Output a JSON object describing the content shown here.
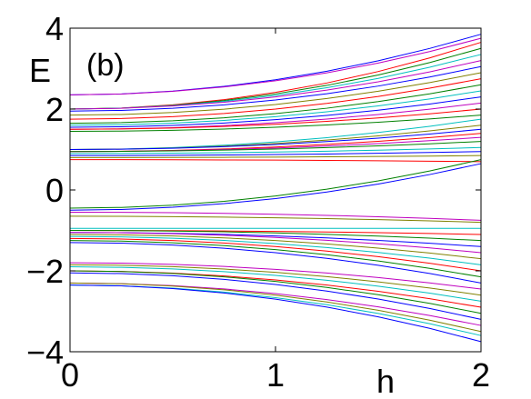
{
  "chart_data": {
    "type": "line",
    "panel_label": "(b)",
    "title": "",
    "xlabel": "h",
    "ylabel": "E",
    "xlim": [
      0,
      2
    ],
    "ylim": [
      -4,
      4
    ],
    "xticks": [
      {
        "value": 0,
        "label": "0"
      },
      {
        "value": 1,
        "label": "1"
      },
      {
        "value": 2,
        "label": "2"
      }
    ],
    "yticks": [
      {
        "value": -4,
        "label": "−4"
      },
      {
        "value": -2,
        "label": "−2"
      },
      {
        "value": 0,
        "label": "0"
      },
      {
        "value": 2,
        "label": "2"
      },
      {
        "value": 4,
        "label": "4"
      }
    ],
    "grid": false,
    "legend": "none",
    "x_samples": [
      0,
      0.25,
      0.5,
      0.75,
      1,
      1.25,
      1.5,
      1.75,
      2
    ],
    "series": [
      {
        "start": 2.35,
        "end": 3.85,
        "color": "#0000ff"
      },
      {
        "start": 2.35,
        "end": 3.75,
        "color": "#bf00bf"
      },
      {
        "start": 2.0,
        "end": 3.65,
        "color": "#ff0000"
      },
      {
        "start": 2.0,
        "end": 3.5,
        "color": "#008000"
      },
      {
        "start": 2.0,
        "end": 3.35,
        "color": "#00bfbf"
      },
      {
        "start": 2.0,
        "end": 3.2,
        "color": "#bf00bf"
      },
      {
        "start": 1.95,
        "end": 3.05,
        "color": "#0000ff"
      },
      {
        "start": 1.85,
        "end": 2.9,
        "color": "#808000"
      },
      {
        "start": 1.75,
        "end": 2.75,
        "color": "#ff0000"
      },
      {
        "start": 1.65,
        "end": 2.6,
        "color": "#008000"
      },
      {
        "start": 1.6,
        "end": 2.45,
        "color": "#00bfbf"
      },
      {
        "start": 1.55,
        "end": 2.3,
        "color": "#0000ff"
      },
      {
        "start": 1.5,
        "end": 2.15,
        "color": "#bf00bf"
      },
      {
        "start": 1.5,
        "end": 2.0,
        "color": "#ff0000"
      },
      {
        "start": 1.45,
        "end": 1.85,
        "color": "#008000"
      },
      {
        "start": 1.0,
        "end": 1.75,
        "color": "#00bfbf"
      },
      {
        "start": 1.0,
        "end": 1.6,
        "color": "#808000"
      },
      {
        "start": 1.0,
        "end": 1.5,
        "color": "#0000ff"
      },
      {
        "start": 0.95,
        "end": 1.4,
        "color": "#ff0000"
      },
      {
        "start": 0.95,
        "end": 1.3,
        "color": "#bf00bf"
      },
      {
        "start": 0.95,
        "end": 1.2,
        "color": "#008000"
      },
      {
        "start": 0.9,
        "end": 1.05,
        "color": "#00bfbf"
      },
      {
        "start": 0.85,
        "end": 0.95,
        "color": "#0000ff"
      },
      {
        "start": 0.8,
        "end": 0.85,
        "color": "#808000"
      },
      {
        "start": 0.75,
        "end": 0.7,
        "color": "#ff0000"
      },
      {
        "start": -0.45,
        "end": 0.75,
        "color": "#008000"
      },
      {
        "start": -0.5,
        "end": 0.65,
        "color": "#0000ff"
      },
      {
        "start": -0.55,
        "end": -0.75,
        "color": "#bf00bf"
      },
      {
        "start": -0.65,
        "end": -0.8,
        "color": "#808000"
      },
      {
        "start": -0.95,
        "end": -0.95,
        "color": "#00bfbf"
      },
      {
        "start": -1.0,
        "end": -1.1,
        "color": "#ff0000"
      },
      {
        "start": -1.0,
        "end": -1.25,
        "color": "#008000"
      },
      {
        "start": -1.05,
        "end": -1.4,
        "color": "#0000ff"
      },
      {
        "start": -1.05,
        "end": -1.55,
        "color": "#bf00bf"
      },
      {
        "start": -1.1,
        "end": -1.7,
        "color": "#808000"
      },
      {
        "start": -1.15,
        "end": -1.85,
        "color": "#00bfbf"
      },
      {
        "start": -1.2,
        "end": -2.0,
        "color": "#ff0000"
      },
      {
        "start": -1.25,
        "end": -2.15,
        "color": "#008000"
      },
      {
        "start": -1.3,
        "end": -2.3,
        "color": "#0000ff"
      },
      {
        "start": -1.8,
        "end": -2.45,
        "color": "#bf00bf"
      },
      {
        "start": -1.85,
        "end": -2.6,
        "color": "#808000"
      },
      {
        "start": -1.9,
        "end": -2.75,
        "color": "#00bfbf"
      },
      {
        "start": -2.0,
        "end": -2.9,
        "color": "#ff0000"
      },
      {
        "start": -2.0,
        "end": -3.05,
        "color": "#008000"
      },
      {
        "start": -2.05,
        "end": -3.2,
        "color": "#0000ff"
      },
      {
        "start": -2.3,
        "end": -3.35,
        "color": "#bf00bf"
      },
      {
        "start": -2.3,
        "end": -3.5,
        "color": "#808000"
      },
      {
        "start": -2.35,
        "end": -3.6,
        "color": "#00bfbf"
      },
      {
        "start": -2.35,
        "end": -3.75,
        "color": "#0000ff"
      }
    ]
  }
}
